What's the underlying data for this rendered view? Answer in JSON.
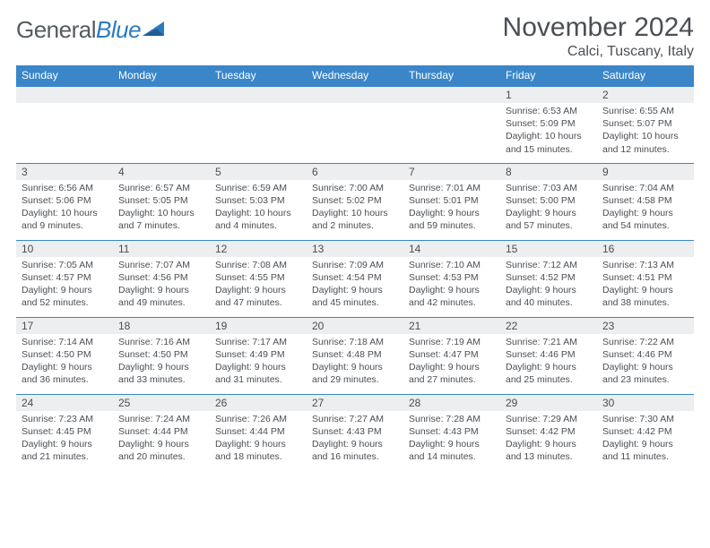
{
  "logo": {
    "general": "General",
    "blue": "Blue"
  },
  "title": "November 2024",
  "location": "Calci, Tuscany, Italy",
  "colors": {
    "header_bg": "#3a86c8",
    "header_fg": "#ffffff",
    "daynum_bg": "#eceeef",
    "text": "#4b4f54",
    "rule": "#3a86c8",
    "logo_gray": "#555b61",
    "logo_blue": "#2c7bbf"
  },
  "weekdays": [
    "Sunday",
    "Monday",
    "Tuesday",
    "Wednesday",
    "Thursday",
    "Friday",
    "Saturday"
  ],
  "weeks": [
    [
      null,
      null,
      null,
      null,
      null,
      {
        "n": "1",
        "sr": "6:53 AM",
        "ss": "5:09 PM",
        "dl": "10 hours and 15 minutes."
      },
      {
        "n": "2",
        "sr": "6:55 AM",
        "ss": "5:07 PM",
        "dl": "10 hours and 12 minutes."
      }
    ],
    [
      {
        "n": "3",
        "sr": "6:56 AM",
        "ss": "5:06 PM",
        "dl": "10 hours and 9 minutes."
      },
      {
        "n": "4",
        "sr": "6:57 AM",
        "ss": "5:05 PM",
        "dl": "10 hours and 7 minutes."
      },
      {
        "n": "5",
        "sr": "6:59 AM",
        "ss": "5:03 PM",
        "dl": "10 hours and 4 minutes."
      },
      {
        "n": "6",
        "sr": "7:00 AM",
        "ss": "5:02 PM",
        "dl": "10 hours and 2 minutes."
      },
      {
        "n": "7",
        "sr": "7:01 AM",
        "ss": "5:01 PM",
        "dl": "9 hours and 59 minutes."
      },
      {
        "n": "8",
        "sr": "7:03 AM",
        "ss": "5:00 PM",
        "dl": "9 hours and 57 minutes."
      },
      {
        "n": "9",
        "sr": "7:04 AM",
        "ss": "4:58 PM",
        "dl": "9 hours and 54 minutes."
      }
    ],
    [
      {
        "n": "10",
        "sr": "7:05 AM",
        "ss": "4:57 PM",
        "dl": "9 hours and 52 minutes."
      },
      {
        "n": "11",
        "sr": "7:07 AM",
        "ss": "4:56 PM",
        "dl": "9 hours and 49 minutes."
      },
      {
        "n": "12",
        "sr": "7:08 AM",
        "ss": "4:55 PM",
        "dl": "9 hours and 47 minutes."
      },
      {
        "n": "13",
        "sr": "7:09 AM",
        "ss": "4:54 PM",
        "dl": "9 hours and 45 minutes."
      },
      {
        "n": "14",
        "sr": "7:10 AM",
        "ss": "4:53 PM",
        "dl": "9 hours and 42 minutes."
      },
      {
        "n": "15",
        "sr": "7:12 AM",
        "ss": "4:52 PM",
        "dl": "9 hours and 40 minutes."
      },
      {
        "n": "16",
        "sr": "7:13 AM",
        "ss": "4:51 PM",
        "dl": "9 hours and 38 minutes."
      }
    ],
    [
      {
        "n": "17",
        "sr": "7:14 AM",
        "ss": "4:50 PM",
        "dl": "9 hours and 36 minutes."
      },
      {
        "n": "18",
        "sr": "7:16 AM",
        "ss": "4:50 PM",
        "dl": "9 hours and 33 minutes."
      },
      {
        "n": "19",
        "sr": "7:17 AM",
        "ss": "4:49 PM",
        "dl": "9 hours and 31 minutes."
      },
      {
        "n": "20",
        "sr": "7:18 AM",
        "ss": "4:48 PM",
        "dl": "9 hours and 29 minutes."
      },
      {
        "n": "21",
        "sr": "7:19 AM",
        "ss": "4:47 PM",
        "dl": "9 hours and 27 minutes."
      },
      {
        "n": "22",
        "sr": "7:21 AM",
        "ss": "4:46 PM",
        "dl": "9 hours and 25 minutes."
      },
      {
        "n": "23",
        "sr": "7:22 AM",
        "ss": "4:46 PM",
        "dl": "9 hours and 23 minutes."
      }
    ],
    [
      {
        "n": "24",
        "sr": "7:23 AM",
        "ss": "4:45 PM",
        "dl": "9 hours and 21 minutes."
      },
      {
        "n": "25",
        "sr": "7:24 AM",
        "ss": "4:44 PM",
        "dl": "9 hours and 20 minutes."
      },
      {
        "n": "26",
        "sr": "7:26 AM",
        "ss": "4:44 PM",
        "dl": "9 hours and 18 minutes."
      },
      {
        "n": "27",
        "sr": "7:27 AM",
        "ss": "4:43 PM",
        "dl": "9 hours and 16 minutes."
      },
      {
        "n": "28",
        "sr": "7:28 AM",
        "ss": "4:43 PM",
        "dl": "9 hours and 14 minutes."
      },
      {
        "n": "29",
        "sr": "7:29 AM",
        "ss": "4:42 PM",
        "dl": "9 hours and 13 minutes."
      },
      {
        "n": "30",
        "sr": "7:30 AM",
        "ss": "4:42 PM",
        "dl": "9 hours and 11 minutes."
      }
    ]
  ],
  "labels": {
    "sunrise": "Sunrise:",
    "sunset": "Sunset:",
    "daylight": "Daylight:"
  }
}
